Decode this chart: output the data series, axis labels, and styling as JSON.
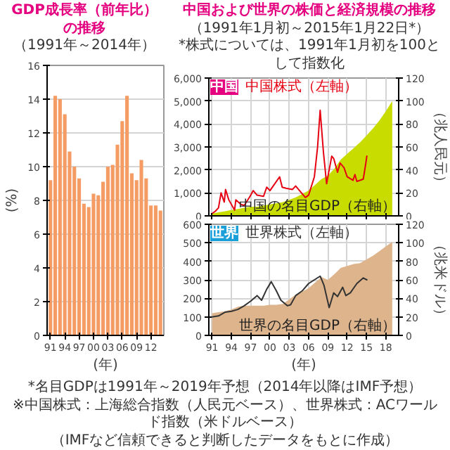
{
  "chart_data": [
    {
      "type": "bar",
      "title": "GDP成長率（前年比）の推移",
      "subtitle": "（1991年～2014年）",
      "ylabel": "(%)",
      "xlabel": "(年)",
      "categories": [
        "91",
        null,
        null,
        "94",
        null,
        null,
        "97",
        null,
        null,
        "00",
        null,
        null,
        "03",
        null,
        null,
        "06",
        null,
        null,
        "09",
        null,
        null,
        "12",
        null,
        null
      ],
      "values": [
        9.2,
        14.2,
        14.0,
        13.1,
        10.9,
        10.0,
        9.3,
        7.8,
        7.6,
        8.4,
        8.3,
        9.1,
        10.0,
        10.1,
        11.3,
        12.7,
        14.2,
        9.6,
        9.2,
        10.4,
        9.3,
        7.7,
        7.7,
        7.4
      ],
      "color": "#f59c64",
      "ylim": [
        0,
        16
      ],
      "yticks": [
        0,
        2,
        4,
        6,
        8,
        10,
        12,
        14,
        16
      ],
      "grid": "y"
    },
    {
      "type": "line",
      "title": "中国および世界の株価と経済規模の推移",
      "subtitle": "（1991年1月初～2015年1月22日*）",
      "y2label": "（兆人民元）",
      "annotations": [
        "中国",
        "*株式については、1991年1月初を100として指数化"
      ],
      "xlim": [
        1990.5,
        2020
      ],
      "xticks": [
        {
          "value": 1991,
          "label": "91"
        },
        {
          "value": 1994,
          "label": "94"
        },
        {
          "value": 1997,
          "label": "97"
        },
        {
          "value": 2000,
          "label": "00"
        },
        {
          "value": 2003,
          "label": "03"
        },
        {
          "value": 2006,
          "label": "06"
        },
        {
          "value": 2009,
          "label": "09"
        },
        {
          "value": 2012,
          "label": "12"
        },
        {
          "value": 2015,
          "label": "15"
        },
        {
          "value": 2018,
          "label": "18"
        }
      ],
      "ylim": [
        0,
        6000
      ],
      "yticks": [
        0,
        {
          "value": 1000,
          "label": "1,000"
        },
        {
          "value": 2000,
          "label": "2,000"
        },
        {
          "value": 3000,
          "label": "3,000"
        },
        {
          "value": 4000,
          "label": "4,000"
        },
        {
          "value": 5000,
          "label": "5,000"
        },
        {
          "value": 6000,
          "label": "6,000"
        }
      ],
      "y2lim": [
        0,
        120
      ],
      "y2ticks": [
        0,
        20,
        40,
        60,
        80,
        100,
        120
      ],
      "grid": true,
      "tick_labels": "y",
      "series": [
        {
          "name": "中国の名目GDP（右軸）",
          "type": "area",
          "axis": "y2",
          "color": "#c8dc00",
          "x": [
            1991,
            1992,
            1993,
            1994,
            1995,
            1996,
            1997,
            1998,
            1999,
            2000,
            2001,
            2002,
            2003,
            2004,
            2005,
            2006,
            2007,
            2008,
            2009,
            2010,
            2011,
            2012,
            2013,
            2014,
            2015,
            2016,
            2017,
            2018,
            2019
          ],
          "values": [
            2,
            3,
            4,
            5,
            6,
            7,
            8,
            8,
            9,
            10,
            11,
            12,
            14,
            16,
            19,
            22,
            27,
            32,
            35,
            41,
            49,
            54,
            59,
            64,
            70,
            76,
            83,
            91,
            100
          ]
        },
        {
          "name": "中国株式（左軸）",
          "type": "line",
          "color": "#e60012",
          "x": [
            1991.0,
            1991.5,
            1992.0,
            1992.4,
            1992.9,
            1993.1,
            1993.6,
            1994.5,
            1994.7,
            1995.5,
            1996.0,
            1996.9,
            1997.4,
            1998.0,
            1999.0,
            1999.5,
            2000.0,
            2001.5,
            2001.9,
            2002.5,
            2003.5,
            2004.0,
            2005.5,
            2006.0,
            2006.9,
            2007.4,
            2007.8,
            2008.3,
            2008.8,
            2009.6,
            2009.9,
            2010.5,
            2010.9,
            2011.5,
            2012.0,
            2012.9,
            2013.2,
            2013.5,
            2014.5,
            2014.9,
            2015.05
          ],
          "values": [
            100,
            200,
            350,
            1000,
            600,
            1150,
            700,
            250,
            700,
            500,
            450,
            850,
            1100,
            900,
            850,
            1250,
            1100,
            1700,
            1250,
            1200,
            1150,
            1300,
            800,
            900,
            1700,
            3000,
            4600,
            2800,
            1400,
            2600,
            2500,
            1900,
            2300,
            2100,
            1700,
            1550,
            1800,
            1500,
            1600,
            2300,
            2600
          ]
        }
      ]
    },
    {
      "type": "line",
      "xlabel": "(年)",
      "y2label": "（兆米ドル）",
      "annotations": [
        "世界",
        "*名目GDPは1991年～2019年予想（2014年以降はIMF予想）",
        "※中国株式：上海総合指数（人民元ベース）、世界株式：ACワールド指数（米ドルベース）",
        "（IMFなど信頼できると判断したデータをもとに作成）"
      ],
      "xlim": [
        1990.5,
        2020
      ],
      "xticks": [
        {
          "value": 1991,
          "label": "91"
        },
        {
          "value": 1994,
          "label": "94"
        },
        {
          "value": 1997,
          "label": "97"
        },
        {
          "value": 2000,
          "label": "00"
        },
        {
          "value": 2003,
          "label": "03"
        },
        {
          "value": 2006,
          "label": "06"
        },
        {
          "value": 2009,
          "label": "09"
        },
        {
          "value": 2012,
          "label": "12"
        },
        {
          "value": 2015,
          "label": "15"
        },
        {
          "value": 2018,
          "label": "18"
        }
      ],
      "ylim": [
        0,
        600
      ],
      "yticks": [
        0,
        100,
        200,
        300,
        400,
        500,
        600
      ],
      "y2lim": [
        0,
        120
      ],
      "y2ticks": [
        0,
        20,
        40,
        60,
        80,
        100,
        120
      ],
      "grid": true,
      "series": [
        {
          "name": "世界の名目GDP（右軸）",
          "type": "area",
          "axis": "y2",
          "color": "#deb48c",
          "x": [
            1991,
            1992,
            1993,
            1994,
            1995,
            1996,
            1997,
            1998,
            1999,
            2000,
            2001,
            2002,
            2003,
            2004,
            2005,
            2006,
            2007,
            2008,
            2009,
            2010,
            2011,
            2012,
            2013,
            2014,
            2015,
            2016,
            2017,
            2018,
            2019
          ],
          "values": [
            24,
            25,
            26,
            28,
            31,
            32,
            32,
            32,
            32,
            33,
            33,
            34,
            39,
            44,
            47,
            51,
            57,
            63,
            60,
            66,
            73,
            75,
            77,
            78,
            82,
            86,
            91,
            96,
            101
          ]
        },
        {
          "name": "世界株式（左軸）",
          "type": "line",
          "color": "#333333",
          "x": [
            1991,
            1992,
            1993,
            1994,
            1995,
            1996,
            1997,
            1998,
            1998.7,
            1999.5,
            2000.2,
            2001,
            2001.7,
            2002.7,
            2003.2,
            2004,
            2005,
            2006,
            2007.8,
            2008.4,
            2009.2,
            2009.9,
            2010.5,
            2011.3,
            2011.8,
            2012.5,
            2013.5,
            2014.5,
            2015.05
          ],
          "values": [
            100,
            105,
            125,
            130,
            140,
            160,
            185,
            215,
            190,
            250,
            290,
            240,
            190,
            160,
            165,
            215,
            240,
            280,
            320,
            270,
            150,
            230,
            210,
            260,
            215,
            230,
            280,
            310,
            300
          ]
        }
      ]
    }
  ]
}
